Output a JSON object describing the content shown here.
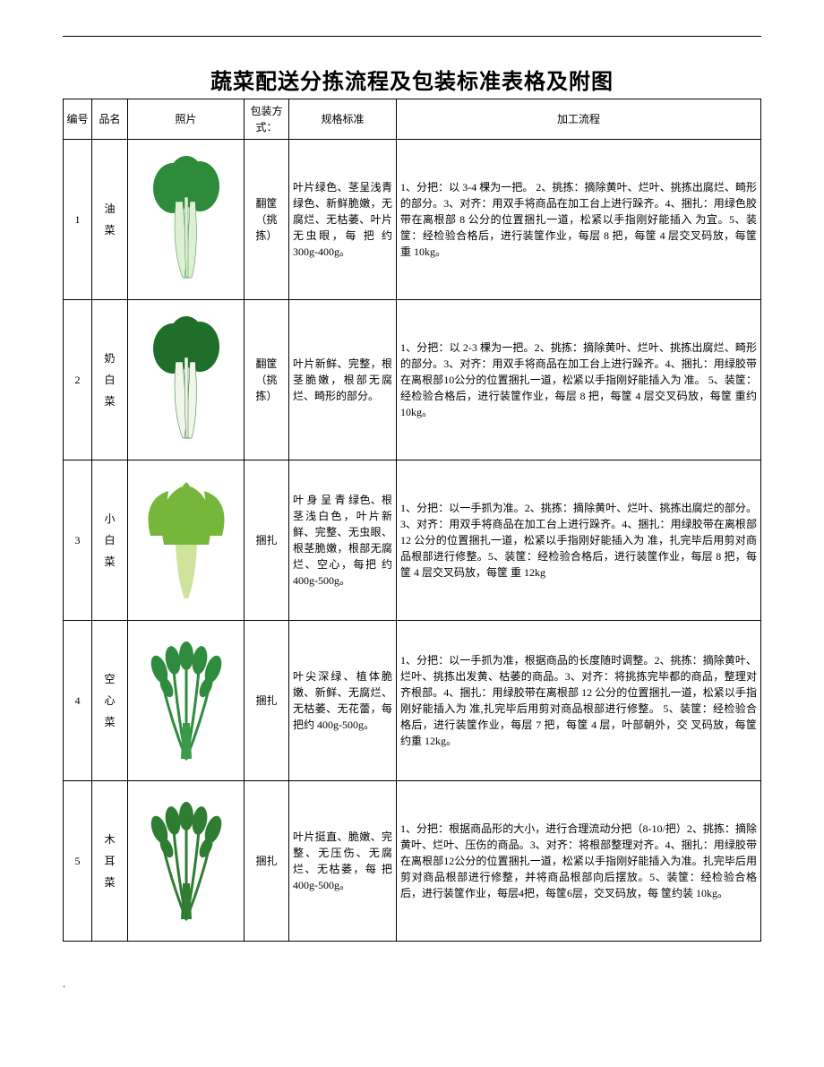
{
  "title": "蔬菜配送分拣流程及包装标准表格及附图",
  "columns": {
    "id": "编号",
    "name": "品名",
    "photo": "照片",
    "pack": "包装方式：",
    "spec": "规格标准",
    "proc": "加工流程"
  },
  "rows": [
    {
      "id": "1",
      "name": [
        "油",
        "菜"
      ],
      "pack": "翻筐（挑拣）",
      "spec": "叶片绿色、茎呈浅青绿色、新鲜脆嫩，无腐烂、无枯萎、叶片无虫眼，每 把 约 300g-400g。",
      "proc": "1、分把：以 3-4 棵为一把。 2、挑拣：摘除黄叶、烂叶、挑拣出腐烂、畸形的部分。3、对齐：用双手将商品在加工台上进行跺齐。4、捆扎：用绿色胶带在离根部 8 公分的位置捆扎一道，松紧以手指刚好能插入 为宜。5、装筐：经检验合格后，进行装筐作业，每层 8 把，每筐 4 层交叉码放，每筐 重 10kg。",
      "veg": {
        "leaf": "#2e8b3c",
        "stem": "#dff0d2",
        "type": "bok"
      }
    },
    {
      "id": "2",
      "name": [
        "奶",
        "白",
        "菜"
      ],
      "pack": "翻筐（挑拣）",
      "spec": "叶片新鲜、完整，根茎脆嫩，根部无腐烂、畸形的部分。",
      "proc": "1、分把：以 2-3 棵为一把。2、挑拣：摘除黄叶、烂叶、挑拣出腐烂、畸形的部分。3、对齐：用双手将商品在加工台上进行跺齐。4、捆扎：用绿胶带在离根部10公分的位置捆扎一道，松紧以手指刚好能插入为 准。 5、装筐：经检验合格后，进行装筐作业，每层 8 把，每筐 4 层交叉码放，每筐 重约 10kg。",
      "veg": {
        "leaf": "#1f6e2a",
        "stem": "#f2f6ea",
        "type": "bok"
      }
    },
    {
      "id": "3",
      "name": [
        "小",
        "白",
        "菜"
      ],
      "pack": "捆扎",
      "spec": "叶 身 呈 青 绿色、根茎浅白色，叶片新鲜、完整、无虫眼、根茎脆嫩，根部无腐烂、空心，每把 约 400g-500g。",
      "proc": "1、分把：以一手抓为准。2、挑拣：摘除黄叶、烂叶、挑拣出腐烂的部分。3、对齐：用双手将商品在加工台上进行跺齐。4、捆扎：用绿胶带在离根部 12 公分的位置捆扎一道，松紧以手指刚好能插入为 准，扎完毕后用剪对商品根部进行修整。5、装筐：经检验合格后，进行装筐作业，每层 8 把，每筐 4 层交叉码放，每筐 重 12kg",
      "veg": {
        "leaf": "#76b63a",
        "stem": "#cfe39c",
        "type": "lettuce"
      }
    },
    {
      "id": "4",
      "name": [
        "空",
        "心",
        "菜"
      ],
      "pack": "捆扎",
      "spec": "叶尖深绿、植体脆嫩、新鲜、无腐烂、无枯萎、无花蕾，每把约 400g-500g。",
      "proc": " 1、分把：以一手抓为准，根据商品的长度随时调整。2、挑拣：摘除黄叶、烂叶、挑拣出发黄、枯萎的商品。3、对齐：将挑拣完毕都的商品，整理对齐根部。4、捆扎：用绿胶带在离根部 12 公分的位置捆扎一道，松紧以手指刚好能插入为 准,扎完毕后用剪对商品根部进行修整。 5、装筐：经检验合格后，进行装筐作业，每层 7 把，每筐 4 层，叶部朝外，交 叉码放，每筐约重 12kg。",
      "veg": {
        "leaf": "#2f8c3f",
        "stem": "#3a9a4a",
        "type": "bunch"
      }
    },
    {
      "id": "5",
      "name": [
        "木",
        "耳",
        "菜"
      ],
      "pack": "捆扎",
      "spec": "叶片挺直、脆嫩、完整、无压伤、无腐烂、无枯萎，每 把 400g-500g。",
      "proc": " 1、分把：根据商品形的大小，进行合理流动分把（8-10/把）2、挑拣：摘除黄叶、烂叶、压伤的商品。3、对齐：将根部整理对齐。4、捆扎：用绿胶带在离根部12公分的位置捆扎一道，松紧以手指刚好能插入为准。扎完毕后用剪对商品根部进行修整，并将商品根部向后摆放。5、装筐：经检验合格后，进行装筐作业，每层4把，每筐6层，交叉码放，每 筐约装 10kg。",
      "veg": {
        "leaf": "#2e7d32",
        "stem": "#2e7d32",
        "type": "bunch"
      }
    }
  ],
  "style": {
    "title_fontsize": 24,
    "body_fontsize": 12,
    "border_color": "#000000",
    "background_color": "#ffffff"
  }
}
